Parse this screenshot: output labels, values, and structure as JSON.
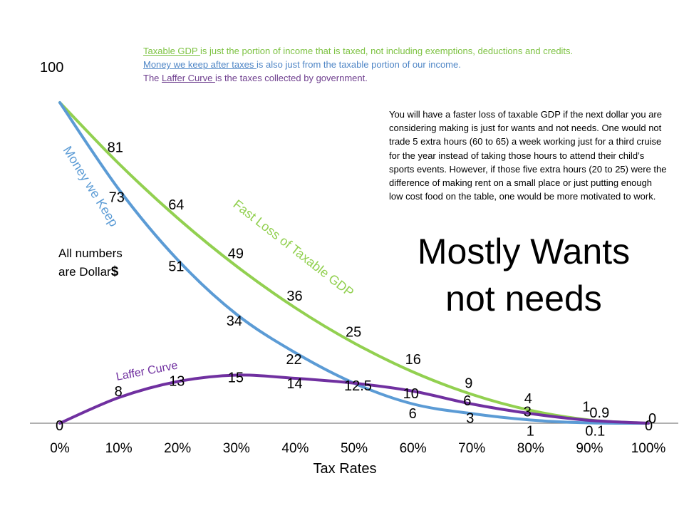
{
  "notes": {
    "line1_link": "Taxable GDP ",
    "line1_rest": "is just the portion of income that is taxed, not including exemptions, deductions and credits.",
    "line2_link": "Money we keep after taxes ",
    "line2_rest": "is also just from the taxable portion of our income.",
    "line3_pre": "The ",
    "line3_link": "Laffer Curve ",
    "line3_rest": "is the taxes collected by government."
  },
  "units_note": {
    "line1": "All numbers",
    "line2": "are Dollar",
    "symbol": "$"
  },
  "paragraph": "You will have a faster loss of taxable GDP if the next dollar you are considering making is just for wants and not needs.   One would not trade 5 extra hours (60 to 65) a week working just for a third cruise for the year instead of taking those hours to attend their child’s sports events.  However, if those five extra hours (20 to 25) were the difference of making rent on a small place or just putting enough low cost food on the table, one would be more motivated to work.",
  "headline": {
    "line1": "Mostly Wants",
    "line2": "not needs"
  },
  "colors": {
    "green": "#92d050",
    "blue": "#5b9bd5",
    "purple": "#7030a0",
    "axis": "#808080"
  },
  "chart_data": {
    "type": "line",
    "xlabel": "Tax Rates",
    "ylabel": "",
    "x": [
      "0%",
      "10%",
      "20%",
      "30%",
      "40%",
      "50%",
      "60%",
      "70%",
      "80%",
      "90%",
      "100%"
    ],
    "ylim": [
      0,
      100
    ],
    "grid": false,
    "series": [
      {
        "name": "Fast Loss of Taxable GDP",
        "color": "#92d050",
        "values": [
          100,
          81,
          64,
          49,
          36,
          25,
          16,
          9,
          4,
          1,
          0
        ],
        "labels": [
          "100",
          "81",
          "64",
          "49",
          "36",
          "25",
          "16",
          "9",
          "4",
          "1",
          "0"
        ]
      },
      {
        "name": "Money we Keep",
        "color": "#5b9bd5",
        "values": [
          100,
          73,
          51,
          34,
          22,
          12.5,
          6,
          3,
          1,
          0.1,
          0
        ],
        "labels": [
          "",
          "73",
          "51",
          "34",
          "22",
          "",
          "6",
          "3",
          "1",
          "0.1",
          ""
        ]
      },
      {
        "name": "Laffer Curve",
        "color": "#7030a0",
        "values": [
          0,
          8,
          13,
          15,
          14,
          12.5,
          10,
          6,
          3,
          0.9,
          0
        ],
        "labels": [
          "0",
          "8",
          "13",
          "15",
          "14",
          "12.5",
          "10",
          "6",
          "3",
          "0.9",
          ""
        ]
      }
    ]
  }
}
